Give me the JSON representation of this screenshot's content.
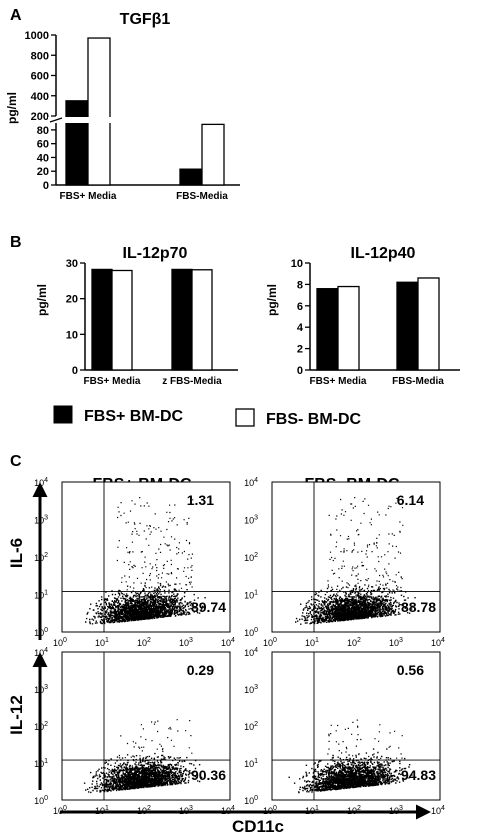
{
  "figure": {
    "panel_labels": [
      "A",
      "B",
      "C"
    ],
    "ylabel_pg": "pg/ml",
    "legend": [
      {
        "name": "FBS+ BM-DC",
        "color": "#000000"
      },
      {
        "name": "FBS- BM-DC",
        "color": "#ffffff"
      }
    ],
    "flow": {
      "x_label": "CD11c",
      "col_titles": [
        "FBS+ BM-DC",
        "FBS- BM-DC"
      ],
      "row_labels": [
        "IL-6",
        "IL-12"
      ],
      "log_ticks": [
        "10",
        "10",
        "10",
        "10",
        "10"
      ],
      "log_exps": [
        "0",
        "1",
        "2",
        "3",
        "4"
      ]
    }
  },
  "chart_data": [
    {
      "id": "tgfb1",
      "type": "bar",
      "title": "TGFβ1",
      "ylabel": "pg/ml",
      "categories": [
        "FBS+ Media",
        "FBS-Media"
      ],
      "series": [
        {
          "name": "FBS+ BM-DC",
          "color": "#000000",
          "values": [
            350,
            23
          ]
        },
        {
          "name": "FBS- BM-DC",
          "color": "#ffffff",
          "values": [
            970,
            88
          ]
        }
      ],
      "axis_break": {
        "lower": [
          0,
          90
        ],
        "upper": [
          200,
          1000
        ]
      },
      "yticks_lower": [
        "0",
        "20",
        "40",
        "60",
        "80"
      ],
      "yticks_upper": [
        "200",
        "400",
        "600",
        "800",
        "1000"
      ]
    },
    {
      "id": "il12p70",
      "type": "bar",
      "title": "IL-12p70",
      "ylabel": "pg/ml",
      "categories": [
        "FBS+ Media",
        "z FBS-Media"
      ],
      "series": [
        {
          "name": "FBS+ BM-DC",
          "color": "#000000",
          "values": [
            28.2,
            28.2
          ]
        },
        {
          "name": "FBS- BM-DC",
          "color": "#ffffff",
          "values": [
            27.9,
            28.1
          ]
        }
      ],
      "ylim": [
        0,
        30
      ],
      "yticks": [
        "0",
        "10",
        "20",
        "30"
      ]
    },
    {
      "id": "il12p40",
      "type": "bar",
      "title": "IL-12p40",
      "ylabel": "pg/ml",
      "categories": [
        "FBS+ Media",
        "FBS-Media"
      ],
      "series": [
        {
          "name": "FBS+ BM-DC",
          "color": "#000000",
          "values": [
            7.6,
            8.2
          ]
        },
        {
          "name": "FBS- BM-DC",
          "color": "#ffffff",
          "values": [
            7.8,
            8.6
          ]
        }
      ],
      "ylim": [
        0,
        10
      ],
      "yticks": [
        "0",
        "2",
        "4",
        "6",
        "8",
        "10"
      ]
    },
    {
      "id": "flow",
      "type": "scatter",
      "xscale": "log",
      "yscale": "log",
      "xlim": [
        1,
        10000
      ],
      "ylim": [
        1,
        10000
      ],
      "gate": {
        "x": 10,
        "y": 12
      },
      "xlabel": "CD11c",
      "panels": [
        {
          "col": "FBS+ BM-DC",
          "row": "IL-6",
          "upper_right_pct": "1.31",
          "lower_right_pct": "89.74"
        },
        {
          "col": "FBS- BM-DC",
          "row": "IL-6",
          "upper_right_pct": "6.14",
          "lower_right_pct": "88.78"
        },
        {
          "col": "FBS+ BM-DC",
          "row": "IL-12",
          "upper_right_pct": "0.29",
          "lower_right_pct": "90.36"
        },
        {
          "col": "FBS- BM-DC",
          "row": "IL-12",
          "upper_right_pct": "0.56",
          "lower_right_pct": "94.83"
        }
      ]
    }
  ]
}
